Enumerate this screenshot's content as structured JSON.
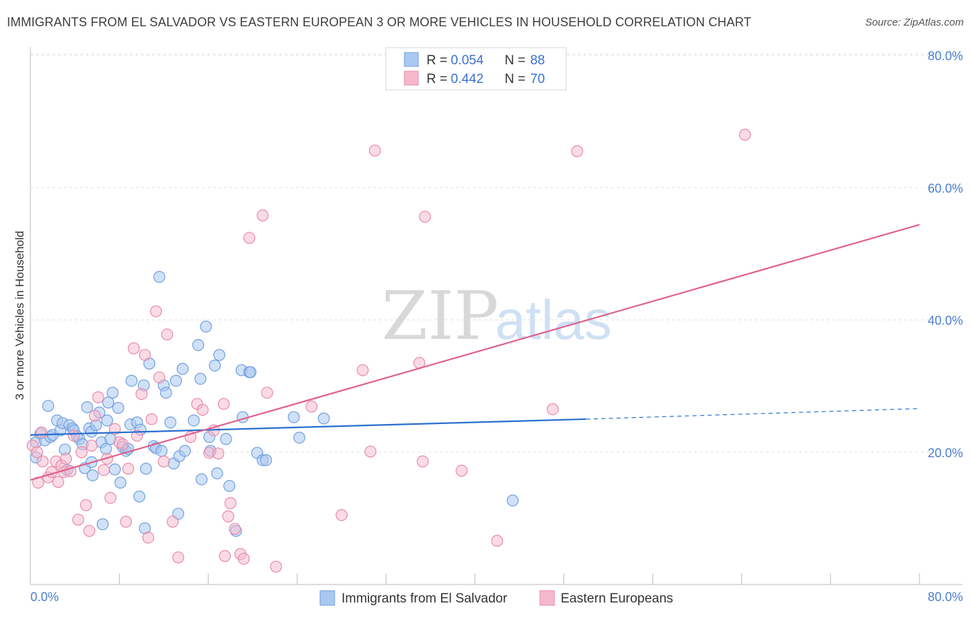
{
  "title": "IMMIGRANTS FROM EL SALVADOR VS EASTERN EUROPEAN 3 OR MORE VEHICLES IN HOUSEHOLD CORRELATION CHART",
  "source": "Source: ZipAtlas.com",
  "watermark": {
    "zip": "ZIP",
    "atlas": "atlas"
  },
  "colors": {
    "blue_fill": "#a9c8f0",
    "blue_stroke": "#6f9fe0",
    "blue_line": "#2a6fcf",
    "pink_fill": "#f5b8cb",
    "pink_stroke": "#e98aa8",
    "pink_line": "#e0608c",
    "tick": "#4a7fd0"
  },
  "legend": [
    {
      "r_label": "R =",
      "r_value": "0.054",
      "n_label": "N =",
      "n_value": "88"
    },
    {
      "r_label": "R =",
      "r_value": "0.442",
      "n_label": "N =",
      "n_value": "70"
    }
  ],
  "chart_data": {
    "type": "scatter",
    "xlabel": "",
    "ylabel": "3 or more Vehicles in Household",
    "xlim": [
      0,
      80
    ],
    "ylim": [
      0,
      80
    ],
    "x_tick_labels": [
      "0.0%",
      "80.0%"
    ],
    "y_ticks": [
      20,
      40,
      60,
      80
    ],
    "y_tick_labels": [
      "20.0%",
      "40.0%",
      "60.0%",
      "80.0%"
    ],
    "grid": "horizontal dashed",
    "legend_position": "top-center",
    "series": [
      {
        "name": "Immigrants from El Salvador",
        "color": "#a9c8f0",
        "trend": {
          "x": [
            0,
            50
          ],
          "y": [
            22.6,
            25.0
          ],
          "dashed_extension_to": [
            80,
            26.6
          ]
        },
        "points": [
          [
            0.5,
            21.5
          ],
          [
            0.5,
            19.2
          ],
          [
            0.9,
            22.8
          ],
          [
            1.3,
            21.8
          ],
          [
            1.6,
            27.0
          ],
          [
            1.8,
            22.3
          ],
          [
            2.0,
            22.6
          ],
          [
            2.4,
            24.8
          ],
          [
            2.7,
            23.3
          ],
          [
            2.9,
            24.4
          ],
          [
            3.1,
            20.4
          ],
          [
            3.3,
            17.3
          ],
          [
            3.5,
            24.1
          ],
          [
            3.8,
            23.6
          ],
          [
            3.9,
            23.3
          ],
          [
            4.2,
            22.4
          ],
          [
            4.4,
            22.0
          ],
          [
            4.7,
            21.2
          ],
          [
            4.9,
            17.6
          ],
          [
            5.1,
            26.8
          ],
          [
            5.3,
            23.6
          ],
          [
            5.5,
            23.1
          ],
          [
            5.5,
            18.5
          ],
          [
            5.6,
            16.5
          ],
          [
            5.9,
            24.1
          ],
          [
            6.2,
            26.0
          ],
          [
            6.4,
            21.5
          ],
          [
            6.5,
            9.1
          ],
          [
            6.8,
            20.5
          ],
          [
            6.9,
            24.8
          ],
          [
            7.0,
            27.5
          ],
          [
            7.2,
            22.0
          ],
          [
            7.4,
            29.0
          ],
          [
            7.6,
            17.4
          ],
          [
            7.9,
            26.7
          ],
          [
            8.1,
            15.4
          ],
          [
            8.3,
            20.8
          ],
          [
            8.6,
            20.2
          ],
          [
            8.8,
            20.5
          ],
          [
            9.0,
            24.2
          ],
          [
            9.1,
            30.8
          ],
          [
            9.6,
            24.5
          ],
          [
            9.8,
            13.3
          ],
          [
            9.9,
            23.4
          ],
          [
            10.2,
            30.1
          ],
          [
            10.3,
            8.5
          ],
          [
            10.4,
            17.5
          ],
          [
            10.7,
            33.4
          ],
          [
            11.1,
            20.9
          ],
          [
            11.3,
            20.6
          ],
          [
            11.6,
            46.5
          ],
          [
            11.8,
            20.2
          ],
          [
            12.0,
            30.1
          ],
          [
            12.2,
            29.0
          ],
          [
            12.6,
            24.5
          ],
          [
            12.9,
            18.3
          ],
          [
            13.1,
            30.8
          ],
          [
            13.3,
            10.7
          ],
          [
            13.4,
            19.4
          ],
          [
            13.7,
            32.6
          ],
          [
            13.9,
            20.2
          ],
          [
            14.7,
            24.8
          ],
          [
            15.1,
            36.2
          ],
          [
            15.3,
            31.1
          ],
          [
            15.4,
            15.9
          ],
          [
            15.8,
            39.0
          ],
          [
            16.1,
            22.3
          ],
          [
            16.2,
            20.2
          ],
          [
            16.6,
            33.1
          ],
          [
            16.8,
            16.8
          ],
          [
            17.0,
            34.7
          ],
          [
            17.6,
            22.0
          ],
          [
            17.9,
            14.9
          ],
          [
            18.5,
            8.1
          ],
          [
            19.0,
            32.4
          ],
          [
            19.1,
            25.3
          ],
          [
            19.7,
            32.1
          ],
          [
            19.8,
            32.1
          ],
          [
            20.4,
            19.9
          ],
          [
            20.9,
            18.8
          ],
          [
            21.2,
            18.8
          ],
          [
            23.7,
            25.3
          ],
          [
            24.2,
            22.2
          ],
          [
            26.4,
            25.1
          ],
          [
            43.4,
            12.7
          ]
        ]
      },
      {
        "name": "Eastern Europeans",
        "color": "#f5b8cb",
        "trend": {
          "x": [
            0,
            80
          ],
          "y": [
            15.8,
            54.4
          ]
        },
        "points": [
          [
            0.2,
            21.0
          ],
          [
            0.6,
            20.0
          ],
          [
            0.7,
            15.4
          ],
          [
            1.0,
            23.0
          ],
          [
            1.1,
            18.6
          ],
          [
            1.6,
            16.2
          ],
          [
            1.9,
            17.0
          ],
          [
            2.3,
            18.6
          ],
          [
            2.5,
            15.5
          ],
          [
            2.8,
            18.0
          ],
          [
            3.0,
            17.0
          ],
          [
            3.2,
            19.0
          ],
          [
            3.6,
            17.1
          ],
          [
            3.9,
            22.5
          ],
          [
            4.3,
            9.8
          ],
          [
            4.6,
            20.0
          ],
          [
            5.0,
            12.0
          ],
          [
            5.3,
            8.1
          ],
          [
            5.5,
            21.0
          ],
          [
            5.8,
            25.5
          ],
          [
            6.1,
            28.3
          ],
          [
            6.6,
            17.3
          ],
          [
            6.9,
            19.0
          ],
          [
            7.2,
            13.1
          ],
          [
            7.6,
            23.5
          ],
          [
            8.0,
            21.5
          ],
          [
            8.3,
            21.2
          ],
          [
            8.6,
            9.5
          ],
          [
            8.8,
            17.5
          ],
          [
            9.3,
            35.7
          ],
          [
            9.6,
            22.5
          ],
          [
            10.0,
            28.8
          ],
          [
            10.3,
            34.7
          ],
          [
            10.6,
            7.1
          ],
          [
            10.9,
            25.0
          ],
          [
            11.3,
            41.3
          ],
          [
            11.6,
            31.3
          ],
          [
            12.0,
            18.6
          ],
          [
            12.3,
            37.8
          ],
          [
            12.8,
            9.5
          ],
          [
            13.3,
            4.1
          ],
          [
            14.4,
            22.3
          ],
          [
            15.0,
            27.3
          ],
          [
            15.5,
            26.4
          ],
          [
            16.1,
            19.9
          ],
          [
            16.5,
            23.3
          ],
          [
            16.9,
            19.8
          ],
          [
            17.4,
            27.3
          ],
          [
            17.5,
            4.3
          ],
          [
            17.8,
            10.3
          ],
          [
            18.0,
            12.3
          ],
          [
            18.4,
            8.4
          ],
          [
            18.9,
            4.6
          ],
          [
            19.2,
            3.9
          ],
          [
            19.7,
            52.4
          ],
          [
            20.9,
            55.8
          ],
          [
            21.3,
            29.0
          ],
          [
            22.1,
            2.7
          ],
          [
            25.3,
            26.9
          ],
          [
            28.0,
            10.5
          ],
          [
            29.9,
            32.4
          ],
          [
            30.6,
            20.1
          ],
          [
            31.0,
            65.6
          ],
          [
            35.0,
            33.5
          ],
          [
            35.3,
            18.6
          ],
          [
            35.5,
            55.6
          ],
          [
            38.8,
            17.2
          ],
          [
            42.0,
            6.6
          ],
          [
            47.0,
            26.5
          ],
          [
            49.2,
            65.5
          ],
          [
            64.3,
            68.0
          ]
        ]
      }
    ]
  },
  "bottom_legend": [
    "Immigrants from El Salvador",
    "Eastern Europeans"
  ]
}
